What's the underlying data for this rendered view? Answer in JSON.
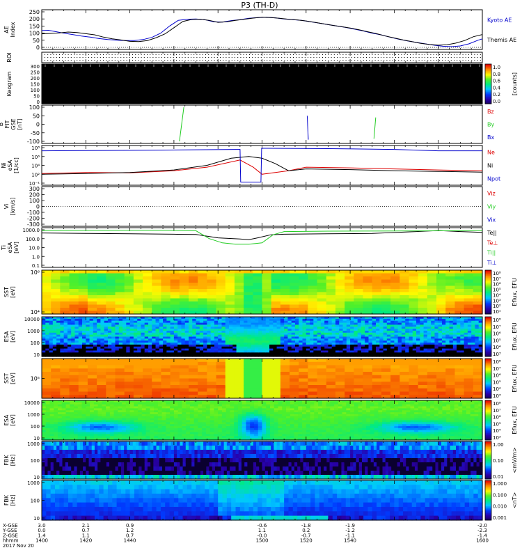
{
  "page_title": "P3 (TH-D)",
  "colors": {
    "black": "#000000",
    "blue": "#0000cc",
    "red": "#dd0000",
    "green": "#22cc22",
    "navy": "#1a1a9a"
  },
  "chart_data": [
    {
      "name": "ae",
      "type": "line",
      "ylabel": "AE Index",
      "ylim": [
        0,
        250
      ],
      "ticks": [
        "250",
        "200",
        "150",
        "100",
        "50",
        "0"
      ],
      "legend": [
        "Kyoto AE",
        "Themis AE"
      ],
      "series": [
        {
          "name": "Kyoto AE",
          "color": "#0000cc",
          "x": [
            1400,
            1403,
            1406,
            1410,
            1414,
            1418,
            1422,
            1426,
            1430,
            1434,
            1438,
            1442,
            1446,
            1450,
            1454,
            1458,
            1462,
            1466,
            1470,
            1474,
            1478,
            1482,
            1486,
            1490,
            1494,
            1498,
            1502,
            1506,
            1510,
            1514,
            1518,
            1522,
            1526,
            1530,
            1534,
            1538,
            1542,
            1546,
            1550,
            1554,
            1558,
            1562,
            1566,
            1570,
            1574,
            1578,
            1582,
            1586,
            1590,
            1594,
            1598,
            1600
          ],
          "y": [
            118,
            120,
            112,
            100,
            90,
            80,
            72,
            62,
            55,
            50,
            48,
            48,
            55,
            70,
            100,
            150,
            190,
            198,
            200,
            195,
            180,
            178,
            188,
            195,
            205,
            210,
            212,
            208,
            200,
            195,
            190,
            180,
            170,
            160,
            150,
            140,
            128,
            115,
            100,
            88,
            72,
            58,
            45,
            35,
            25,
            15,
            8,
            5,
            10,
            25,
            50,
            60
          ]
        },
        {
          "name": "Themis AE",
          "color": "#000000",
          "x": [
            1400,
            1404,
            1408,
            1412,
            1416,
            1420,
            1424,
            1428,
            1432,
            1436,
            1440,
            1444,
            1448,
            1452,
            1456,
            1460,
            1464,
            1468,
            1472,
            1476,
            1480,
            1484,
            1488,
            1492,
            1496,
            1500,
            1504,
            1508,
            1512,
            1516,
            1520,
            1524,
            1528,
            1532,
            1536,
            1540,
            1544,
            1548,
            1552,
            1556,
            1560,
            1564,
            1568,
            1572,
            1576,
            1580,
            1584,
            1588,
            1592,
            1596,
            1600
          ],
          "y": [
            95,
            98,
            102,
            108,
            104,
            96,
            88,
            72,
            60,
            52,
            42,
            40,
            48,
            68,
            95,
            138,
            182,
            196,
            198,
            190,
            176,
            180,
            190,
            198,
            206,
            212,
            210,
            205,
            198,
            193,
            186,
            176,
            165,
            155,
            146,
            136,
            124,
            110,
            96,
            80,
            66,
            52,
            40,
            28,
            20,
            15,
            18,
            30,
            48,
            75,
            90
          ]
        }
      ]
    },
    {
      "name": "roi",
      "type": "other",
      "ylabel": "ROI"
    },
    {
      "name": "keogram",
      "type": "heatmap",
      "ylabel": "Keogram",
      "ticks": [
        "300",
        "250",
        "200",
        "150",
        "100",
        "50",
        "0"
      ],
      "colorbar": {
        "label": "[counts]",
        "ticks": [
          "1.0",
          "0.8",
          "0.6",
          "0.4",
          "0.2",
          "0.0"
        ]
      }
    },
    {
      "name": "bfit",
      "type": "line",
      "ylabel": "B FIT GSE [nT]",
      "ylim": [
        -100,
        100
      ],
      "ticks": [
        "100",
        "50",
        "0",
        "-50",
        "-100"
      ],
      "legend": [
        "Bz",
        "By",
        "Bx"
      ],
      "series": [
        {
          "name": "Bz",
          "color": "#dd0000",
          "x": [],
          "y": []
        },
        {
          "name": "By",
          "color": "#22cc22",
          "x": [
            1462.5,
            1464.5,
            1550.8,
            1551.6
          ],
          "y": [
            -100,
            100,
            -85,
            40
          ]
        },
        {
          "name": "Bx",
          "color": "#0000cc",
          "x": [
            1520.5,
            1521.0
          ],
          "y": [
            50,
            -90
          ]
        }
      ]
    },
    {
      "name": "density",
      "type": "line",
      "ylabel": "Ni eSA [1/cc]",
      "ticks": [
        "10⁸",
        "10⁶",
        "10⁴",
        "10²",
        "10⁻¹"
      ],
      "legend": [
        "Ne",
        "Ni",
        "Npot"
      ],
      "series": [
        {
          "name": "Ne",
          "color": "#dd0000",
          "x": [
            1400,
            1420,
            1440,
            1460,
            1475,
            1490,
            1496,
            1500,
            1506,
            1512,
            1520,
            1540,
            1560,
            1580,
            1600
          ],
          "y": [
            1.2,
            1.5,
            1.4,
            2.0,
            3.0,
            5.0,
            3.0,
            1.0,
            1.5,
            2.0,
            3.0,
            2.8,
            2.5,
            2.2,
            2.0
          ]
        },
        {
          "name": "Ni",
          "color": "#000000",
          "x": [
            1400,
            1420,
            1440,
            1460,
            1475,
            1486,
            1494,
            1500,
            1506,
            1512,
            1520,
            1540,
            1560,
            1580,
            1600
          ],
          "y": [
            1.0,
            1.2,
            1.5,
            2.2,
            3.5,
            5.5,
            6.0,
            5.5,
            4.0,
            2.0,
            2.5,
            2.3,
            2.0,
            1.8,
            1.6
          ]
        },
        {
          "name": "Npot",
          "color": "#0000cc",
          "x": [
            1400,
            1430,
            1455,
            1470,
            1488,
            1490,
            1490.3,
            1499.5,
            1499.8,
            1502,
            1530,
            1560,
            1580,
            1600
          ],
          "y": [
            7.6,
            7.7,
            7.8,
            7.9,
            8.0,
            8.0,
            -1.2,
            -1.2,
            8.3,
            8.3,
            8.2,
            8.0,
            7.6,
            7.6
          ]
        }
      ]
    },
    {
      "name": "velocity",
      "type": "line",
      "ylabel": "Vi [km/s]",
      "ylim": [
        -300,
        300
      ],
      "ticks": [
        "300",
        "200",
        "100",
        "0",
        "-100",
        "-200",
        "-300"
      ],
      "legend": [
        "Viz",
        "Viy",
        "Vix"
      ],
      "series": []
    },
    {
      "name": "temperature",
      "type": "line",
      "ylabel": "Ti eSA [eV]",
      "ticks": [
        "1000.0",
        "100.0",
        "10.0",
        "1.0",
        "0.1"
      ],
      "legend": [
        "Te||",
        "Te⊥",
        "Ti||",
        "Ti⊥"
      ],
      "series": [
        {
          "name": "Te||",
          "color": "#000000",
          "x": [
            1400,
            1420,
            1440,
            1460,
            1470,
            1480,
            1490,
            1494,
            1498,
            1504,
            1510,
            1530,
            1550,
            1570,
            1580,
            1590,
            1600
          ],
          "y": [
            1000,
            900,
            800,
            700,
            650,
            250,
            180,
            150,
            250,
            600,
            700,
            800,
            900,
            1500,
            2000,
            1500,
            1200
          ]
        },
        {
          "name": "Ti||",
          "color": "#22cc22",
          "x": [
            1400,
            1420,
            1440,
            1460,
            1470,
            1476,
            1482,
            1488,
            1494,
            1500,
            1505,
            1510,
            1530,
            1560,
            1590,
            1600
          ],
          "y": [
            2000,
            2100,
            2200,
            2100,
            1900,
            200,
            60,
            40,
            40,
            60,
            600,
            1500,
            1700,
            1800,
            1900,
            2000
          ]
        }
      ]
    },
    {
      "name": "sst_ion",
      "type": "heatmap",
      "ylabel": "SST [eV]",
      "ticks": [
        "10⁶",
        "10⁴"
      ],
      "colorbar": {
        "label": "Eflux, EFU",
        "ticks": [
          "10⁸",
          "10⁷",
          "10⁶",
          "10⁵",
          "10⁴",
          "10³",
          "10²",
          "10¹"
        ]
      }
    },
    {
      "name": "esa_ion",
      "type": "heatmap",
      "ylabel": "ESA [eV]",
      "ticks": [
        "10000",
        "1000",
        "100",
        "10"
      ],
      "colorbar": {
        "label": "Eflux, EFU",
        "ticks": [
          "10⁸",
          "10⁷",
          "10⁶",
          "10⁵",
          "10⁴",
          "10³"
        ]
      }
    },
    {
      "name": "sst_electron",
      "type": "heatmap",
      "ylabel": "SST [eV]",
      "ticks": [
        "10⁵"
      ],
      "colorbar": {
        "label": "Eflux, EFU",
        "ticks": [
          "10⁸",
          "10⁷",
          "10⁶",
          "10⁵",
          "10⁴",
          "10³"
        ]
      }
    },
    {
      "name": "esa_electron",
      "type": "heatmap",
      "ylabel": "ESA [eV]",
      "ticks": [
        "10000",
        "1000",
        "100",
        "10"
      ],
      "colorbar": {
        "label": "Eflux, EFU",
        "ticks": [
          "10⁸",
          "10⁷",
          "10⁶",
          "10⁵",
          "10⁴",
          "10³"
        ]
      }
    },
    {
      "name": "fbk_e",
      "type": "heatmap",
      "ylabel": "FBK [Hz]",
      "ticks": [
        "1000",
        "100",
        "10"
      ],
      "colorbar": {
        "label": "<mV/m>",
        "ticks": [
          "1.00",
          "0.10",
          "0.01"
        ]
      }
    },
    {
      "name": "fbk_b",
      "type": "heatmap",
      "ylabel": "FBK [Hz]",
      "ticks": [
        "1000",
        "100",
        "10"
      ],
      "colorbar": {
        "label": "<nT>",
        "ticks": [
          "1.000",
          "0.100",
          "0.010",
          "0.001"
        ]
      }
    }
  ],
  "x_axis": {
    "row_labels": [
      "X-GSE",
      "Y-GSE",
      "Z-GSE",
      "hhmm",
      "2017 Nov 20"
    ],
    "ticks": [
      {
        "x": 1400,
        "values": [
          "3.0",
          "0.0",
          "1.4",
          "1400"
        ]
      },
      {
        "x": 1420,
        "values": [
          "2.1",
          "0.7",
          "1.1",
          "1420"
        ]
      },
      {
        "x": 1440,
        "values": [
          "0.9",
          "1.2",
          "0.7",
          "1440"
        ]
      },
      {
        "x": 1500,
        "values": [
          "-0.6",
          "1.1",
          "-0.0",
          "1500"
        ]
      },
      {
        "x": 1520,
        "values": [
          "-1.8",
          "0.2",
          "-0.7",
          "1520"
        ]
      },
      {
        "x": 1540,
        "values": [
          "-1.9",
          "-1.2",
          "-1.1",
          "1540"
        ]
      },
      {
        "x": 1600,
        "values": [
          "-2.0",
          "-2.3",
          "-1.4",
          "1600"
        ]
      }
    ]
  }
}
